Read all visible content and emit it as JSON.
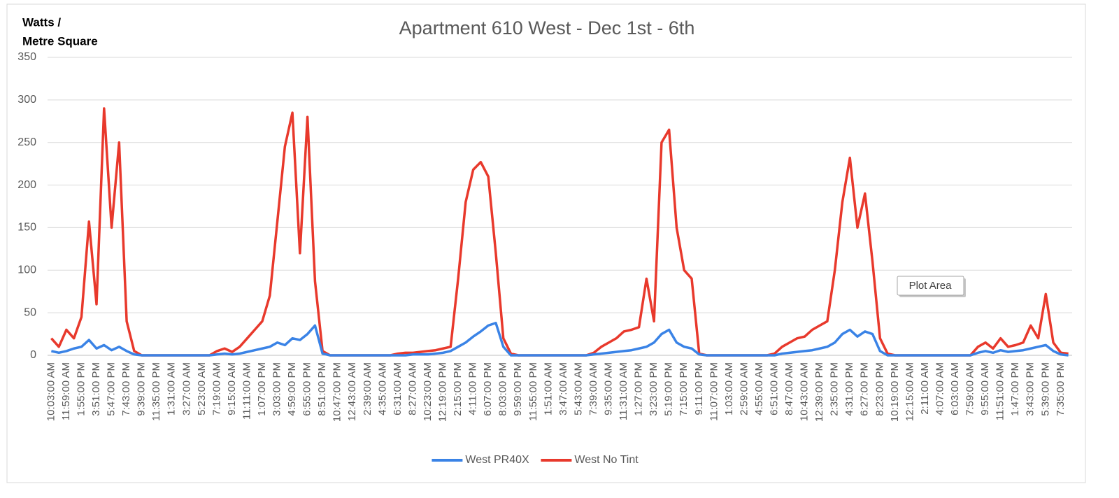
{
  "chart_data": {
    "type": "line",
    "title": "Apartment 610 West - Dec 1st - 6th",
    "ylabel": [
      "Watts /",
      "Metre Square"
    ],
    "tooltip": "Plot Area",
    "ylim": [
      0,
      350
    ],
    "yticks": [
      0,
      50,
      100,
      150,
      200,
      250,
      300,
      350
    ],
    "grid": true,
    "legend": "bottom",
    "categories": [
      "10:03:00 AM",
      null,
      "11:59:00 AM",
      null,
      "1:55:00 PM",
      null,
      "3:51:00 PM",
      null,
      "5:47:00 PM",
      null,
      "7:43:00 PM",
      null,
      "9:39:00 PM",
      null,
      "11:35:00 PM",
      null,
      "1:31:00 AM",
      null,
      "3:27:00 AM",
      null,
      "5:23:00 AM",
      null,
      "7:19:00 AM",
      null,
      "9:15:00 AM",
      null,
      "11:11:00 AM",
      null,
      "1:07:00 PM",
      null,
      "3:03:00 PM",
      null,
      "4:59:00 PM",
      null,
      "6:55:00 PM",
      null,
      "8:51:00 PM",
      null,
      "10:47:00 PM",
      null,
      "12:43:00 AM",
      null,
      "2:39:00 AM",
      null,
      "4:35:00 AM",
      null,
      "6:31:00 AM",
      null,
      "8:27:00 AM",
      null,
      "10:23:00 AM",
      null,
      "12:19:00 PM",
      null,
      "2:15:00 PM",
      null,
      "4:11:00 PM",
      null,
      "6:07:00 PM",
      null,
      "8:03:00 PM",
      null,
      "9:59:00 PM",
      null,
      "11:55:00 PM",
      null,
      "1:51:00 AM",
      null,
      "3:47:00 AM",
      null,
      "5:43:00 AM",
      null,
      "7:39:00 AM",
      null,
      "9:35:00 AM",
      null,
      "11:31:00 AM",
      null,
      "1:27:00 PM",
      null,
      "3:23:00 PM",
      null,
      "5:19:00 PM",
      null,
      "7:15:00 PM",
      null,
      "9:11:00 PM",
      null,
      "11:07:00 PM",
      null,
      "1:03:00 AM",
      null,
      "2:59:00 AM",
      null,
      "4:55:00 AM",
      null,
      "6:51:00 AM",
      null,
      "8:47:00 AM",
      null,
      "10:43:00 AM",
      null,
      "12:39:00 PM",
      null,
      "2:35:00 PM",
      null,
      "4:31:00 PM",
      null,
      "6:27:00 PM",
      null,
      "8:23:00 PM",
      null,
      "10:19:00 PM",
      null,
      "12:15:00 AM",
      null,
      "2:11:00 AM",
      null,
      "4:07:00 AM",
      null,
      "6:03:00 AM",
      null,
      "7:59:00 AM",
      null,
      "9:55:00 AM",
      null,
      "11:51:00 AM",
      null,
      "1:47:00 PM",
      null,
      "3:43:00 PM",
      null,
      "5:39:00 PM",
      null,
      "7:35:00 PM",
      null
    ],
    "series": [
      {
        "name": "West PR40X",
        "color": "#3a83e6",
        "values": [
          5,
          3,
          5,
          8,
          10,
          18,
          8,
          12,
          6,
          10,
          5,
          1,
          0,
          0,
          0,
          0,
          0,
          0,
          0,
          0,
          0,
          0,
          1,
          2,
          1,
          2,
          4,
          6,
          8,
          10,
          15,
          12,
          20,
          18,
          25,
          35,
          2,
          0,
          0,
          0,
          0,
          0,
          0,
          0,
          0,
          0,
          0,
          0,
          1,
          1,
          1,
          2,
          3,
          5,
          10,
          15,
          22,
          28,
          35,
          38,
          10,
          0,
          0,
          0,
          0,
          0,
          0,
          0,
          0,
          0,
          0,
          0,
          1,
          2,
          3,
          4,
          5,
          6,
          8,
          10,
          15,
          25,
          30,
          15,
          10,
          8,
          1,
          0,
          0,
          0,
          0,
          0,
          0,
          0,
          0,
          0,
          0,
          2,
          3,
          4,
          5,
          6,
          8,
          10,
          15,
          25,
          30,
          22,
          28,
          25,
          5,
          0,
          0,
          0,
          0,
          0,
          0,
          0,
          0,
          0,
          0,
          0,
          0,
          3,
          5,
          3,
          6,
          4,
          5,
          6,
          8,
          10,
          12,
          5,
          1,
          0
        ]
      },
      {
        "name": "West No Tint",
        "color": "#e8392c",
        "values": [
          20,
          10,
          30,
          20,
          45,
          157,
          60,
          290,
          150,
          250,
          40,
          5,
          0,
          0,
          0,
          0,
          0,
          0,
          0,
          0,
          0,
          0,
          5,
          8,
          4,
          10,
          20,
          30,
          40,
          70,
          157,
          245,
          285,
          120,
          280,
          87,
          5,
          0,
          0,
          0,
          0,
          0,
          0,
          0,
          0,
          0,
          2,
          3,
          3,
          4,
          5,
          6,
          8,
          10,
          90,
          180,
          218,
          227,
          210,
          120,
          20,
          2,
          0,
          0,
          0,
          0,
          0,
          0,
          0,
          0,
          0,
          0,
          3,
          10,
          15,
          20,
          28,
          30,
          33,
          90,
          40,
          250,
          265,
          150,
          100,
          90,
          2,
          0,
          0,
          0,
          0,
          0,
          0,
          0,
          0,
          0,
          2,
          10,
          15,
          20,
          22,
          30,
          35,
          40,
          100,
          180,
          232,
          150,
          190,
          110,
          20,
          2,
          0,
          0,
          0,
          0,
          0,
          0,
          0,
          0,
          0,
          0,
          0,
          10,
          15,
          8,
          20,
          10,
          12,
          15,
          35,
          20,
          72,
          15,
          3,
          2
        ]
      }
    ]
  }
}
